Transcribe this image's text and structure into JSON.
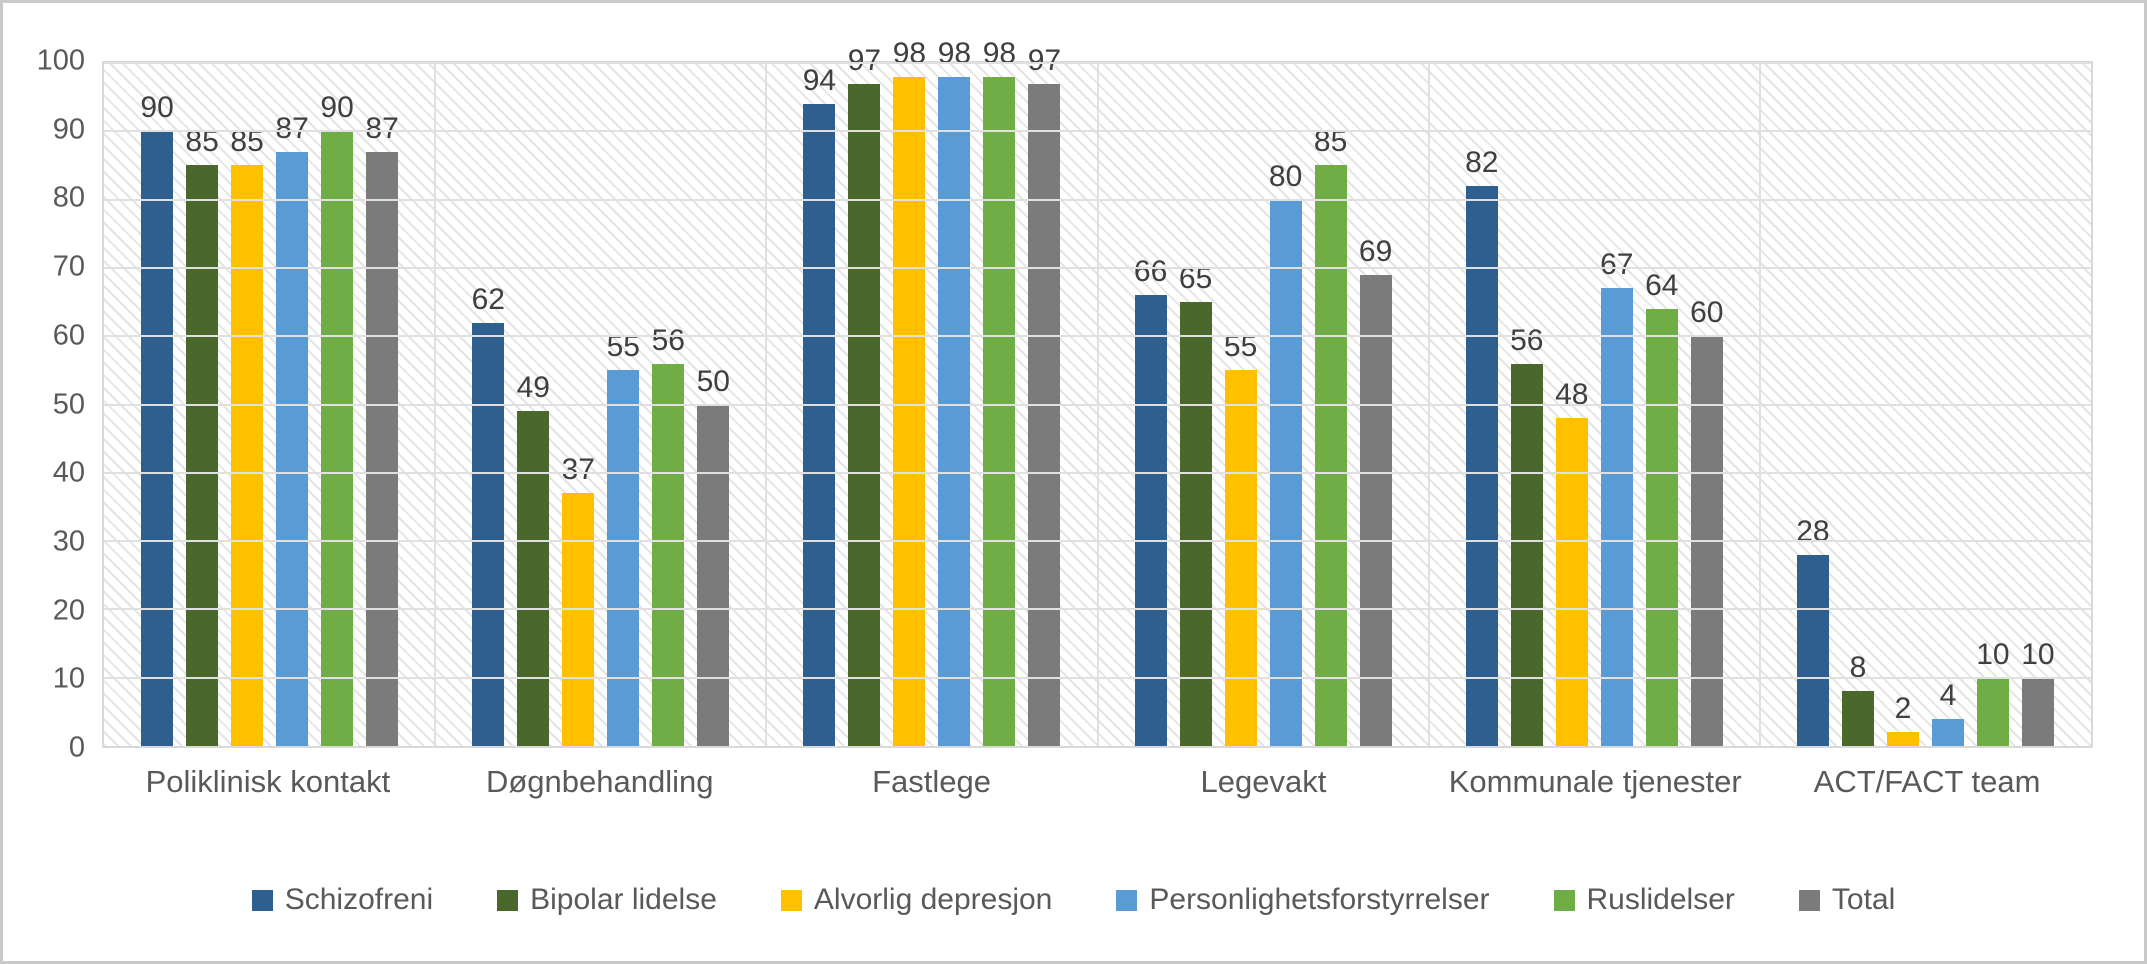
{
  "chart_data": {
    "type": "bar",
    "title": "",
    "categories": [
      "Poliklinisk kontakt",
      "Døgnbehandling",
      "Fastlege",
      "Legevakt",
      "Kommunale tjenester",
      "ACT/FACT team"
    ],
    "series": [
      {
        "name": "Schizofreni",
        "color": "#2E5F8F",
        "values": [
          90,
          62,
          94,
          66,
          82,
          28
        ]
      },
      {
        "name": "Bipolar lidelse",
        "color": "#4A682B",
        "values": [
          85,
          49,
          97,
          65,
          56,
          8
        ]
      },
      {
        "name": "Alvorlig depresjon",
        "color": "#FFC000",
        "values": [
          85,
          37,
          98,
          55,
          48,
          2
        ]
      },
      {
        "name": "Personlighetsforstyrrelser",
        "color": "#5B9BD5",
        "values": [
          87,
          55,
          98,
          80,
          67,
          4
        ]
      },
      {
        "name": "Ruslidelser",
        "color": "#70AD47",
        "values": [
          90,
          56,
          98,
          85,
          64,
          10
        ]
      },
      {
        "name": "Total",
        "color": "#7B7B7B",
        "values": [
          87,
          50,
          97,
          69,
          60,
          10
        ]
      }
    ],
    "xlabel": "",
    "ylabel": "",
    "ylim": [
      0,
      100
    ],
    "y_ticks": [
      0,
      10,
      20,
      30,
      40,
      50,
      60,
      70,
      80,
      90,
      100
    ],
    "grid": true,
    "plot_background_pattern": "light-diagonal-hatch",
    "data_labels": true,
    "legend_position": "bottom"
  },
  "style_colors": {
    "axis_text": "#595959",
    "data_label": "#3F3F3F",
    "gridline": "#E0E0E0",
    "plot_border": "#D9D9D9",
    "frame_border": "#C9C9C9"
  }
}
